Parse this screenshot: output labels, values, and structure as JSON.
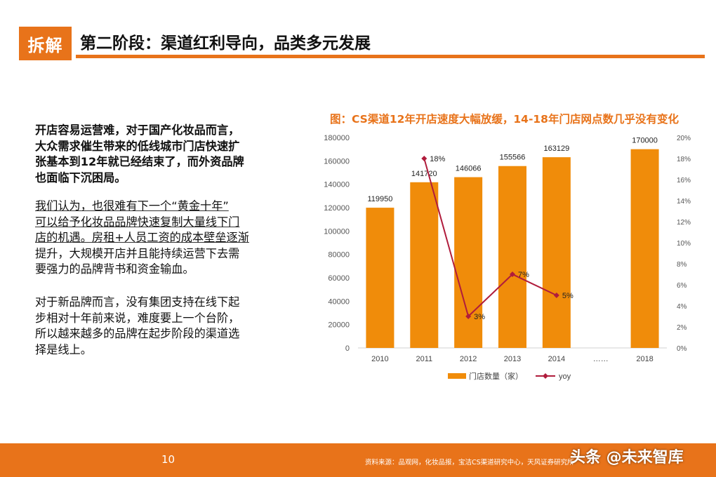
{
  "header": {
    "badge": "拆解",
    "title": "第二阶段：渠道红利导向，品类多元发展"
  },
  "paragraphs": {
    "p1": [
      "开店容易运营难，对于国产化妆品而言，",
      "大众需求催生带来的低线城市门店快速扩",
      "张基本到12年就已经结束了，而外资品牌",
      "也面临下沉困局。"
    ],
    "p2": [
      "我们认为，也很难有下一个“黄金十年”",
      "可以给予化妆品品牌快速复制大量线下门",
      "店的机遇。房租+人员工资的成本壁垒逐渐",
      "提升，大规模开店并且能持续运营下去需",
      "要强力的品牌背书和资金输血。"
    ],
    "p3": [
      "对于新品牌而言，没有集团支持在线下起",
      "步相对十年前来说，难度要上一个台阶，",
      "所以越来越多的品牌在起步阶段的渠道选",
      "择是线上。"
    ]
  },
  "chart_data": {
    "type": "bar",
    "title": "图：CS渠道12年开店速度大幅放缓，14-18年门店网点数几乎没有变化",
    "categories": [
      "2010",
      "2011",
      "2012",
      "2013",
      "2014",
      "……",
      "2018"
    ],
    "series": [
      {
        "name": "门店数量（家）",
        "type": "bar",
        "axis": "left",
        "color": "#f08c0a",
        "values": [
          119950,
          141720,
          146066,
          155566,
          163129,
          null,
          170000
        ],
        "labels": [
          "119950",
          "141720",
          "146066",
          "155566",
          "163129",
          "",
          "170000"
        ]
      },
      {
        "name": "yoy",
        "type": "line",
        "axis": "right",
        "color": "#b01c3c",
        "values": [
          null,
          18,
          3,
          7,
          5,
          null,
          null
        ],
        "labels": [
          "",
          "18%",
          "3%",
          "7%",
          "5%",
          "",
          ""
        ]
      }
    ],
    "ylim_left": [
      0,
      180000
    ],
    "yticks_left": [
      "0",
      "20000",
      "40000",
      "60000",
      "80000",
      "100000",
      "120000",
      "140000",
      "160000",
      "180000"
    ],
    "ylim_right": [
      0,
      20
    ],
    "yticks_right": [
      "0%",
      "2%",
      "4%",
      "6%",
      "8%",
      "10%",
      "12%",
      "14%",
      "16%",
      "18%",
      "20%"
    ],
    "legend_position": "bottom"
  },
  "footer": {
    "page_number": "10",
    "source": "资料来源：品观网，化妆品报，宝洁CS渠道研究中心，天风证券研究所",
    "watermark": "头条 @未来智库"
  },
  "colors": {
    "accent": "#e8731a",
    "bar": "#f08c0a",
    "line": "#b01c3c"
  }
}
